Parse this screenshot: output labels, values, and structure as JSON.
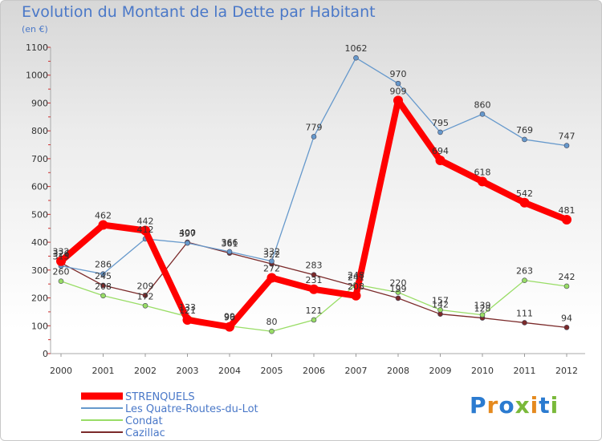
{
  "title": "Evolution du Montant de la Dette par Habitant",
  "subtitle": "(en €)",
  "logo": "Proxiti",
  "chart_data": {
    "type": "line",
    "title": "Evolution du Montant de la Dette par Habitant",
    "ylabel": "(en €)",
    "xlabel": "",
    "ylim": [
      0,
      1100
    ],
    "yticks": [
      0,
      100,
      200,
      300,
      400,
      500,
      600,
      700,
      800,
      900,
      1000,
      1100
    ],
    "grid": false,
    "legend_position": "bottom-left",
    "x": [
      "2000",
      "2001",
      "2002",
      "2003",
      "2004",
      "2005",
      "2006",
      "2007",
      "2008",
      "2009",
      "2010",
      "2011",
      "2012"
    ],
    "series": [
      {
        "name": "Cazillac",
        "color": "#7b2a2a",
        "values": [
          326,
          245,
          209,
          400,
          361,
          322,
          283,
          241,
          199,
          142,
          128,
          111,
          94
        ]
      },
      {
        "name": "Condat",
        "color": "#99dd66",
        "values": [
          260,
          208,
          172,
          133,
          99,
          80,
          121,
          248,
          220,
          157,
          139,
          263,
          242
        ]
      },
      {
        "name": "Les Quatre-Routes-du-Lot",
        "color": "#6699cc",
        "values": [
          315,
          286,
          412,
          397,
          366,
          332,
          779,
          1062,
          970,
          795,
          860,
          769,
          747
        ]
      },
      {
        "name": "STRENQUELS",
        "color": "#ff0000",
        "values": [
          332,
          462,
          442,
          121,
          96,
          272,
          231,
          208,
          909,
          694,
          618,
          542,
          481
        ]
      }
    ],
    "legend": [
      "STRENQUELS",
      "Les Quatre-Routes-du-Lot",
      "Condat",
      "Cazillac"
    ]
  }
}
